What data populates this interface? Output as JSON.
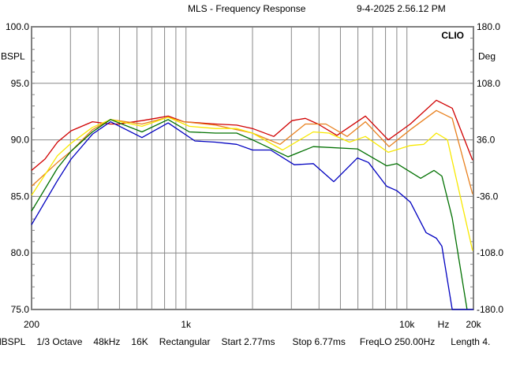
{
  "header": {
    "title": "MLS - Frequency Response",
    "timestamp": "9-4-2025 2.56.12 PM"
  },
  "status_bar": [
    "dBSPL",
    "1/3 Octave",
    "48kHz",
    "16K",
    "Rectangular",
    "Start 2.77ms",
    "Stop 6.77ms",
    "FreqLO 250.00Hz",
    "Length 4."
  ],
  "chart_data": {
    "type": "line",
    "title": "MLS - Frequency Response",
    "brand": "CLIO",
    "xlabel": "Hz",
    "ylabel": "BSPL",
    "y2label": "Deg",
    "xscale": "log",
    "xlim": [
      200,
      20000
    ],
    "ylim": [
      75,
      100
    ],
    "y2lim": [
      -180,
      180
    ],
    "grid": true,
    "x_tick_labels": [
      {
        "v": 200,
        "label": "200"
      },
      {
        "v": 1000,
        "label": "1k"
      },
      {
        "v": 10000,
        "label": "10k"
      },
      {
        "v": 20000,
        "label": "20k"
      }
    ],
    "x_gridlines": [
      300,
      400,
      500,
      600,
      700,
      800,
      900,
      1000,
      2000,
      3000,
      4000,
      5000,
      6000,
      7000,
      8000,
      9000,
      10000
    ],
    "y_tick_labels": [
      "100.0",
      "95.0",
      "90.0",
      "85.0",
      "80.0",
      "75.0"
    ],
    "y2_tick_labels": [
      "180.0",
      "108.0",
      "36.0",
      "-36.0",
      "-108.0",
      "-180.0"
    ],
    "series": [
      {
        "name": "red",
        "color": "#d00000",
        "points": [
          [
            200,
            87.3
          ],
          [
            230,
            88.3
          ],
          [
            262,
            89.8
          ],
          [
            302,
            90.8
          ],
          [
            377,
            91.6
          ],
          [
            455,
            91.4
          ],
          [
            494,
            91.4
          ],
          [
            632,
            91.7
          ],
          [
            727,
            91.9
          ],
          [
            830,
            92.1
          ],
          [
            978,
            91.6
          ],
          [
            1360,
            91.4
          ],
          [
            1696,
            91.3
          ],
          [
            2000,
            91.0
          ],
          [
            2497,
            90.3
          ],
          [
            3018,
            91.7
          ],
          [
            3469,
            91.9
          ],
          [
            3957,
            91.4
          ],
          [
            4820,
            90.4
          ],
          [
            6486,
            92.1
          ],
          [
            8229,
            90.0
          ],
          [
            10355,
            91.4
          ],
          [
            13585,
            93.5
          ],
          [
            16028,
            92.8
          ],
          [
            19821,
            88.2
          ]
        ]
      },
      {
        "name": "orange",
        "color": "#e8801e",
        "points": [
          [
            200,
            85.9
          ],
          [
            262,
            88.0
          ],
          [
            302,
            89.0
          ],
          [
            377,
            90.9
          ],
          [
            455,
            91.8
          ],
          [
            632,
            91.4
          ],
          [
            830,
            92.0
          ],
          [
            978,
            91.6
          ],
          [
            1360,
            91.3
          ],
          [
            2000,
            90.6
          ],
          [
            2668,
            89.6
          ],
          [
            3469,
            91.4
          ],
          [
            4296,
            91.4
          ],
          [
            5364,
            90.3
          ],
          [
            6486,
            91.6
          ],
          [
            8298,
            89.4
          ],
          [
            10355,
            90.9
          ],
          [
            13585,
            92.6
          ],
          [
            16028,
            91.9
          ],
          [
            19821,
            85.2
          ]
        ]
      },
      {
        "name": "yellow",
        "color": "#f8e800",
        "points": [
          [
            200,
            85.1
          ],
          [
            262,
            88.6
          ],
          [
            302,
            89.7
          ],
          [
            377,
            91.1
          ],
          [
            455,
            91.8
          ],
          [
            632,
            91.2
          ],
          [
            830,
            92.0
          ],
          [
            1036,
            91.2
          ],
          [
            1360,
            91.0
          ],
          [
            1696,
            91.0
          ],
          [
            2000,
            90.6
          ],
          [
            2735,
            89.1
          ],
          [
            3768,
            90.7
          ],
          [
            4436,
            90.6
          ],
          [
            5496,
            89.8
          ],
          [
            6486,
            90.3
          ],
          [
            8229,
            88.9
          ],
          [
            10355,
            89.5
          ],
          [
            11916,
            89.6
          ],
          [
            13585,
            90.6
          ],
          [
            15256,
            90.0
          ],
          [
            19821,
            80.2
          ]
        ]
      },
      {
        "name": "green",
        "color": "#007000",
        "points": [
          [
            200,
            83.7
          ],
          [
            262,
            87.5
          ],
          [
            302,
            89.0
          ],
          [
            377,
            90.7
          ],
          [
            455,
            91.8
          ],
          [
            632,
            90.7
          ],
          [
            830,
            91.8
          ],
          [
            1036,
            90.7
          ],
          [
            1360,
            90.6
          ],
          [
            1696,
            90.6
          ],
          [
            2000,
            90.0
          ],
          [
            2896,
            88.5
          ],
          [
            3768,
            89.4
          ],
          [
            5971,
            89.2
          ],
          [
            8093,
            87.7
          ],
          [
            9017,
            87.9
          ],
          [
            11533,
            86.6
          ],
          [
            13252,
            87.3
          ],
          [
            14388,
            86.8
          ],
          [
            16028,
            83.1
          ],
          [
            18714,
            75.0
          ]
        ]
      },
      {
        "name": "blue",
        "color": "#0000c0",
        "points": [
          [
            200,
            82.5
          ],
          [
            262,
            86.4
          ],
          [
            302,
            88.3
          ],
          [
            377,
            90.5
          ],
          [
            455,
            91.6
          ],
          [
            632,
            90.2
          ],
          [
            830,
            91.5
          ],
          [
            1097,
            89.9
          ],
          [
            1360,
            89.8
          ],
          [
            1696,
            89.6
          ],
          [
            2000,
            89.1
          ],
          [
            2416,
            89.1
          ],
          [
            3090,
            87.8
          ],
          [
            3768,
            87.9
          ],
          [
            4666,
            86.3
          ],
          [
            5971,
            88.4
          ],
          [
            6697,
            88.0
          ],
          [
            8093,
            85.9
          ],
          [
            9017,
            85.5
          ],
          [
            10355,
            84.5
          ],
          [
            12214,
            81.8
          ],
          [
            13585,
            81.3
          ],
          [
            14388,
            80.6
          ],
          [
            16028,
            75.0
          ],
          [
            20000,
            75.0
          ]
        ]
      }
    ]
  }
}
